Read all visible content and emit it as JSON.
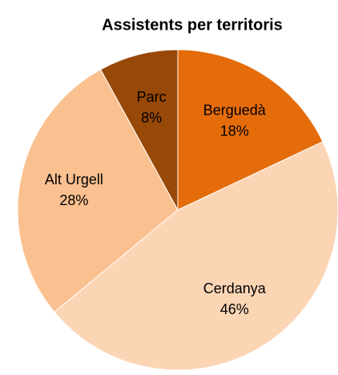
{
  "chart_data": {
    "type": "pie",
    "title": "Assistents per territoris",
    "categories": [
      "Berguedà",
      "Cerdanya",
      "Alt Urgell",
      "Parc"
    ],
    "values": [
      18,
      46,
      28,
      8
    ],
    "value_labels": [
      "18%",
      "46%",
      "28%",
      "8%"
    ],
    "colors": [
      "#e46c0a",
      "#fcd5b5",
      "#fac090",
      "#984807"
    ]
  }
}
